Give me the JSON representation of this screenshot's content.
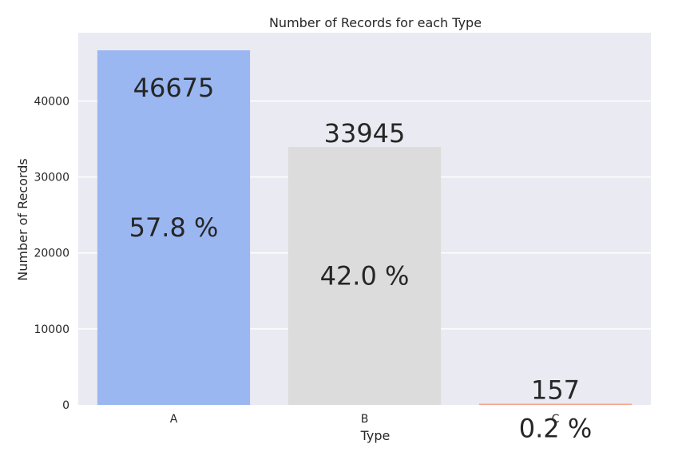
{
  "chart_data": {
    "type": "bar",
    "title": "Number of Records for each Type",
    "xlabel": "Type",
    "ylabel": "Number of Records",
    "categories": [
      "A",
      "B",
      "C"
    ],
    "values": [
      46675,
      33945,
      157
    ],
    "value_labels": [
      "46675",
      "33945",
      "157"
    ],
    "percent_labels": [
      "57.8 %",
      "42.0 %",
      "0.2 %"
    ],
    "colors": [
      "#9bb7f2",
      "#dcdcdc",
      "#f4a58c"
    ],
    "background": "#eaeaf2",
    "grid": true,
    "ylim": [
      0,
      46675
    ],
    "yticks": [
      0,
      10000,
      20000,
      30000,
      40000
    ],
    "ytick_labels": [
      "0",
      "10000",
      "20000",
      "30000",
      "40000"
    ]
  }
}
